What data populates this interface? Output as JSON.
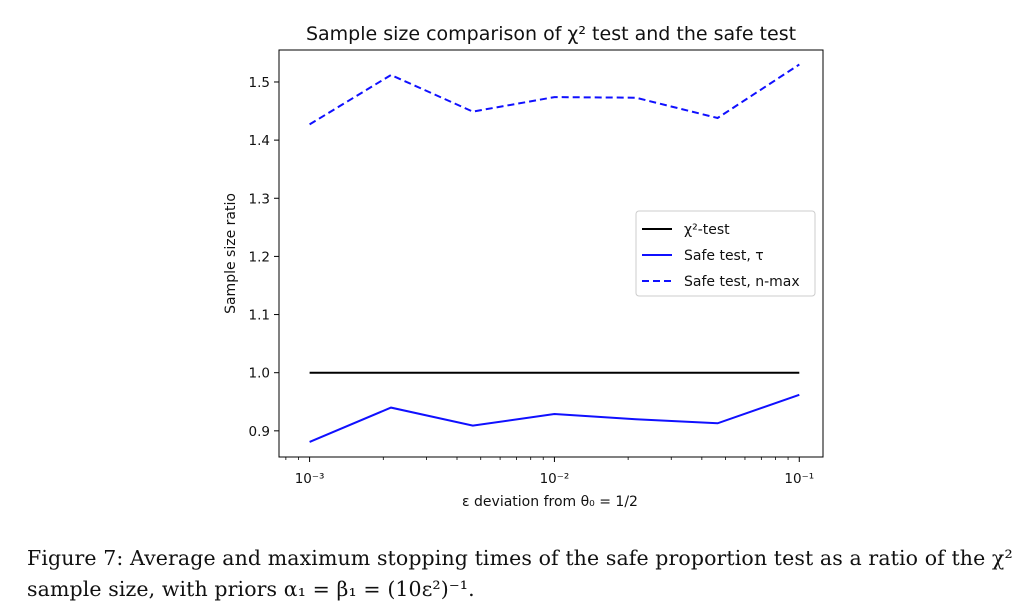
{
  "chart_data": {
    "type": "line",
    "title": "Sample size comparison of χ² test and the safe test",
    "xlabel": "ε deviation from θ₀ = 1/2",
    "ylabel": "Sample size ratio",
    "x_scale": "log",
    "xlim": [
      0.00075,
      0.125
    ],
    "ylim": [
      0.855,
      1.555
    ],
    "x_ticks": [
      0.001,
      0.01,
      0.1
    ],
    "x_tick_labels": [
      "10⁻³",
      "10⁻²",
      "10⁻¹"
    ],
    "y_ticks": [
      0.9,
      1.0,
      1.1,
      1.2,
      1.3,
      1.4,
      1.5
    ],
    "y_tick_labels": [
      "0.9",
      "1.0",
      "1.1",
      "1.2",
      "1.3",
      "1.4",
      "1.5"
    ],
    "grid": false,
    "legend_position": "center-right",
    "series": [
      {
        "name": "χ²-test",
        "color": "#000000",
        "style": "solid",
        "x": [
          0.001,
          0.1
        ],
        "y": [
          1.0,
          1.0
        ]
      },
      {
        "name": "Safe test, τ",
        "color": "#1010ff",
        "style": "solid",
        "x": [
          0.001,
          0.00215,
          0.00464,
          0.01,
          0.0215,
          0.0464,
          0.1
        ],
        "y": [
          0.881,
          0.94,
          0.909,
          0.929,
          0.92,
          0.913,
          0.962
        ]
      },
      {
        "name": "Safe test, n-max",
        "color": "#1010ff",
        "style": "dashed",
        "x": [
          0.001,
          0.00215,
          0.00464,
          0.01,
          0.0215,
          0.0464,
          0.1
        ],
        "y": [
          1.427,
          1.512,
          1.449,
          1.474,
          1.473,
          1.438,
          1.53
        ]
      }
    ]
  },
  "caption": "Figure 7: Average and maximum stopping times of the safe proportion test as a ratio of the χ² sample size, with priors α₁ = β₁ = (10ε²)⁻¹."
}
